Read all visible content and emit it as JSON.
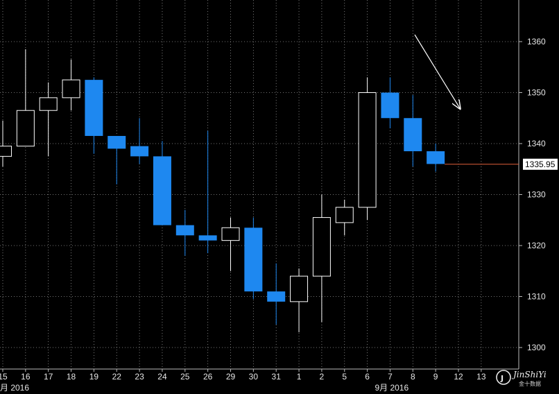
{
  "chart_data": {
    "type": "candlestick",
    "ylim": [
      1295,
      1368
    ],
    "yticks": [
      1300,
      1310,
      1320,
      1330,
      1340,
      1350,
      1360
    ],
    "x_labels": [
      "15",
      "16",
      "17",
      "18",
      "19",
      "22",
      "23",
      "24",
      "25",
      "26",
      "29",
      "30",
      "31",
      "1",
      "2",
      "5",
      "6",
      "7",
      "8",
      "9",
      "12",
      "13"
    ],
    "month_labels": [
      {
        "text": "月 2016",
        "index": 0
      },
      {
        "text": "9月 2016",
        "index": 17
      }
    ],
    "last_price": "1335.95",
    "last_price_value": 1335.95,
    "colors": {
      "up": "#ffffff",
      "down": "#1e88f0",
      "last_line": "#e0603a",
      "grid": "#9a9a9a"
    },
    "candles": [
      {
        "x": "15",
        "open": 1337.5,
        "high": 1344.5,
        "low": 1335.5,
        "close": 1339.5
      },
      {
        "x": "16",
        "open": 1339.5,
        "high": 1358.5,
        "low": 1339.5,
        "close": 1346.5
      },
      {
        "x": "17",
        "open": 1346.5,
        "high": 1352.0,
        "low": 1337.5,
        "close": 1349.0
      },
      {
        "x": "18",
        "open": 1349.0,
        "high": 1356.5,
        "low": 1346.5,
        "close": 1352.5
      },
      {
        "x": "19",
        "open": 1352.5,
        "high": 1353.0,
        "low": 1338.0,
        "close": 1341.5
      },
      {
        "x": "22",
        "open": 1341.5,
        "high": 1341.5,
        "low": 1332.0,
        "close": 1339.0
      },
      {
        "x": "23",
        "open": 1339.5,
        "high": 1345.0,
        "low": 1336.0,
        "close": 1337.5
      },
      {
        "x": "24",
        "open": 1337.5,
        "high": 1340.5,
        "low": 1324.0,
        "close": 1324.0
      },
      {
        "x": "25",
        "open": 1324.0,
        "high": 1327.0,
        "low": 1318.0,
        "close": 1322.0
      },
      {
        "x": "26",
        "open": 1322.0,
        "high": 1342.5,
        "low": 1318.5,
        "close": 1321.0
      },
      {
        "x": "29",
        "open": 1321.0,
        "high": 1325.5,
        "low": 1315.0,
        "close": 1323.5
      },
      {
        "x": "30",
        "open": 1323.5,
        "high": 1325.5,
        "low": 1309.5,
        "close": 1311.0
      },
      {
        "x": "31",
        "open": 1311.0,
        "high": 1316.5,
        "low": 1304.5,
        "close": 1309.0
      },
      {
        "x": "1",
        "open": 1309.0,
        "high": 1315.5,
        "low": 1303.0,
        "close": 1314.0
      },
      {
        "x": "2",
        "open": 1314.0,
        "high": 1330.0,
        "low": 1305.0,
        "close": 1325.5
      },
      {
        "x": "5",
        "open": 1324.5,
        "high": 1329.0,
        "low": 1322.0,
        "close": 1327.5
      },
      {
        "x": "6",
        "open": 1327.5,
        "high": 1353.0,
        "low": 1325.0,
        "close": 1350.0
      },
      {
        "x": "7",
        "open": 1350.0,
        "high": 1353.0,
        "low": 1343.0,
        "close": 1345.0
      },
      {
        "x": "8",
        "open": 1345.0,
        "high": 1349.5,
        "low": 1335.5,
        "close": 1338.5
      },
      {
        "x": "9",
        "open": 1338.5,
        "high": 1340.0,
        "low": 1334.5,
        "close": 1336.0
      }
    ]
  },
  "logo": {
    "text": "JinShiYi",
    "sub": "金十数据"
  }
}
